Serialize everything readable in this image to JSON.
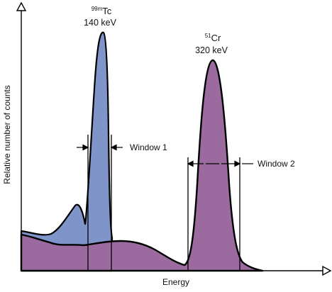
{
  "chart_data": {
    "type": "area",
    "xlabel": "Energy",
    "ylabel": "Relative number of counts",
    "grid": false,
    "legend": "none",
    "peaks": [
      {
        "isotope_sup": "99m",
        "isotope": "Tc",
        "energy_label": "140 keV",
        "color": "#7f95c9"
      },
      {
        "isotope_sup": "51",
        "isotope": "Cr",
        "energy_label": "320 keV",
        "color": "#9b6a9e"
      }
    ],
    "windows": [
      {
        "label": "Window 1"
      },
      {
        "label": "Window 2"
      }
    ],
    "colors": {
      "tc_fill": "#7f95c9",
      "cr_fill": "#9b6a9e",
      "outline": "#000000"
    }
  }
}
